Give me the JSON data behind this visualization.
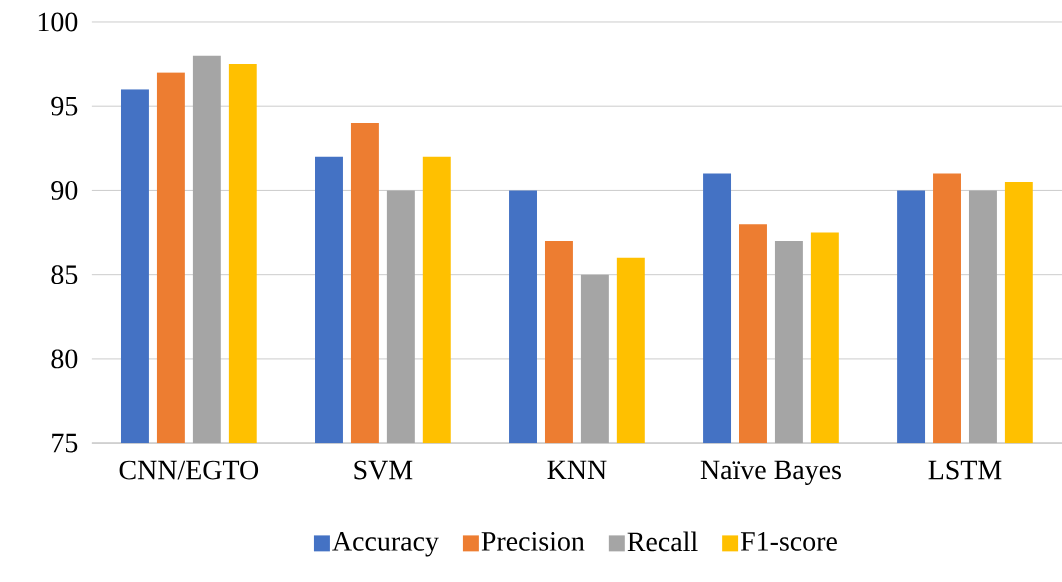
{
  "chart_data": {
    "type": "bar",
    "categories": [
      "CNN/EGTO",
      "SVM",
      "KNN",
      "Naïve Bayes",
      "LSTM"
    ],
    "series": [
      {
        "name": "Accuracy",
        "color": "#4472c4",
        "values": [
          96,
          92,
          90,
          91,
          90
        ]
      },
      {
        "name": "Precision",
        "color": "#ed7d31",
        "values": [
          97,
          94,
          87,
          88,
          91
        ]
      },
      {
        "name": "Recall",
        "color": "#a5a5a5",
        "values": [
          98,
          90,
          85,
          87,
          90
        ]
      },
      {
        "name": "F1-score",
        "color": "#ffc000",
        "values": [
          97.5,
          92,
          86,
          87.5,
          90.5
        ]
      }
    ],
    "ylim": [
      75,
      100
    ],
    "yticks": [
      75,
      80,
      85,
      90,
      95,
      100
    ],
    "grid": "y",
    "legend": "bottom"
  }
}
